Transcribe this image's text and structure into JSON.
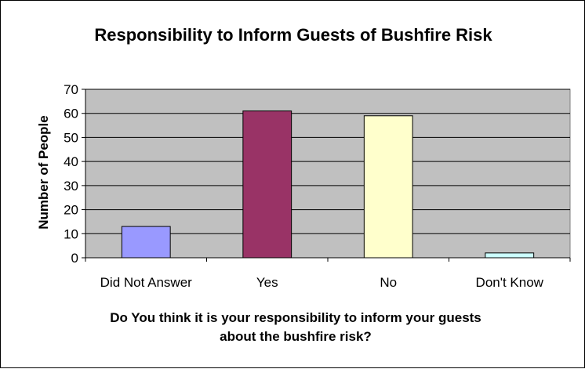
{
  "chart_data": {
    "type": "bar",
    "title": "Responsibility to Inform Guests of Bushfire Risk",
    "xlabel_lines": [
      "Do You think it is your responsibility to inform your guests",
      "about the bushfire risk?"
    ],
    "ylabel": "Number of People",
    "ylim": [
      0,
      70
    ],
    "yticks": [
      0,
      10,
      20,
      30,
      40,
      50,
      60,
      70
    ],
    "categories": [
      "Did Not Answer",
      "Yes",
      "No",
      "Don't Know"
    ],
    "values": [
      13,
      61,
      59,
      2
    ],
    "bar_colors": [
      "#9999ff",
      "#993366",
      "#ffffcc",
      "#ccffff"
    ],
    "plot_background": "#c0c0c0",
    "grid": true,
    "legend": "none"
  }
}
